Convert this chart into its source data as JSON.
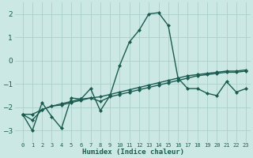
{
  "xlabel": "Humidex (Indice chaleur)",
  "x": [
    0,
    1,
    2,
    3,
    4,
    5,
    6,
    7,
    8,
    9,
    10,
    11,
    12,
    13,
    14,
    15,
    16,
    17,
    18,
    19,
    20,
    21,
    22,
    23
  ],
  "line1": [
    -2.3,
    -3.0,
    -1.8,
    -2.4,
    -2.9,
    -1.6,
    -1.65,
    -1.2,
    -2.15,
    -1.5,
    -0.2,
    0.8,
    1.3,
    2.0,
    2.05,
    1.5,
    -0.75,
    -1.2,
    -1.2,
    -1.4,
    -1.5,
    -0.9,
    -1.35,
    -1.2
  ],
  "line2": [
    -2.3,
    -2.3,
    -2.1,
    -1.95,
    -1.85,
    -1.75,
    -1.65,
    -1.6,
    -1.75,
    -1.55,
    -1.45,
    -1.35,
    -1.25,
    -1.15,
    -1.05,
    -0.95,
    -0.85,
    -0.75,
    -0.65,
    -0.6,
    -0.55,
    -0.5,
    -0.5,
    -0.45
  ],
  "line3": [
    -2.3,
    -2.55,
    -2.1,
    -1.95,
    -1.9,
    -1.8,
    -1.7,
    -1.6,
    -1.55,
    -1.45,
    -1.35,
    -1.25,
    -1.15,
    -1.05,
    -0.95,
    -0.85,
    -0.75,
    -0.65,
    -0.6,
    -0.55,
    -0.5,
    -0.45,
    -0.45,
    -0.4
  ],
  "ylim": [
    -3.5,
    2.5
  ],
  "yticks": [
    -3,
    -2,
    -1,
    0,
    1,
    2
  ],
  "bg_color": "#cce8e4",
  "grid_color": "#aacfca",
  "line_color": "#1a5c50",
  "line_width": 1.0,
  "marker": "D",
  "marker_size": 2.0
}
